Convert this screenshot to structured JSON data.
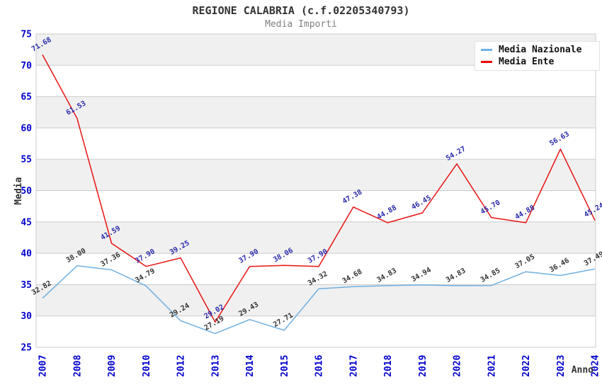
{
  "title": "REGIONE CALABRIA (c.f.02205340793)",
  "subtitle": "Media Importi",
  "axes": {
    "y_label": "Media",
    "x_label": "Anno"
  },
  "legend": {
    "items": [
      {
        "label": "Media Nazionale",
        "color": "#6fb0e2"
      },
      {
        "label": "Media Ente",
        "color": "#ee0000"
      }
    ]
  },
  "colors": {
    "band": "#f0f0f0",
    "grid": "#cccccc",
    "axis_tick": "#0000cc",
    "title": "#333333",
    "subtitle": "#808080",
    "axis_title": "#333333"
  },
  "chart_data": {
    "type": "line",
    "title": "REGIONE CALABRIA (c.f.02205340793)",
    "subtitle": "Media Importi",
    "xlabel": "Anno",
    "ylabel": "Media",
    "ylim": [
      25,
      75
    ],
    "y_ticks": [
      25,
      30,
      35,
      40,
      45,
      50,
      55,
      60,
      65,
      70,
      75
    ],
    "grid": true,
    "alternating_bands": true,
    "legend_position": "top-right",
    "categories": [
      "2007",
      "2008",
      "2009",
      "2010",
      "2012",
      "2013",
      "2014",
      "2015",
      "2016",
      "2017",
      "2018",
      "2019",
      "2020",
      "2021",
      "2022",
      "2023",
      "2024"
    ],
    "series": [
      {
        "name": "Media Nazionale",
        "color": "#6fb0e2",
        "label_color": "#333333",
        "values": [
          32.82,
          38.0,
          37.36,
          34.79,
          29.24,
          27.19,
          29.43,
          27.71,
          34.32,
          34.68,
          34.83,
          34.94,
          34.83,
          34.85,
          37.05,
          36.46,
          37.49
        ]
      },
      {
        "name": "Media Ente",
        "color": "#e81313",
        "label_color": "#2b2bab",
        "values": [
          71.68,
          61.53,
          41.59,
          37.9,
          39.25,
          29.02,
          37.9,
          38.06,
          37.9,
          47.38,
          44.88,
          46.45,
          54.27,
          45.7,
          44.88,
          56.63,
          45.24
        ]
      }
    ]
  }
}
